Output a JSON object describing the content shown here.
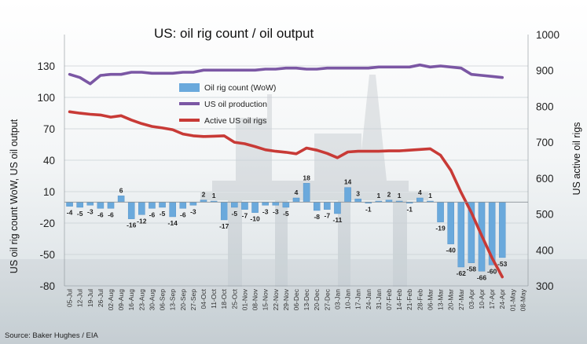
{
  "chart_data": {
    "type": "bar+line",
    "title": "US: oil rig count / oil output",
    "source": "Source: Baker Hughes / EIA",
    "ylabel_left": "US oil rig count WoW, US oil output",
    "ylabel_right": "US active oil rigs",
    "ylim_left": [
      -80,
      160
    ],
    "ylim_right": [
      300,
      1000
    ],
    "yticks_left": [
      "-80",
      "-50",
      "-20",
      "10",
      "40",
      "70",
      "100",
      "130"
    ],
    "yticks_right": [
      "300",
      "400",
      "500",
      "600",
      "700",
      "800",
      "900",
      "1000"
    ],
    "categories": [
      "05-Jul",
      "12-Jul",
      "19-Jul",
      "26-Jul",
      "02-Aug",
      "09-Aug",
      "16-Aug",
      "23-Aug",
      "30-Aug",
      "06-Sep",
      "13-Sep",
      "20-Sep",
      "27-Sep",
      "04-Oct",
      "11-Oct",
      "18-Oct",
      "25-Oct",
      "01-Nov",
      "08-Nov",
      "15-Nov",
      "22-Nov",
      "29-Nov",
      "06-Dec",
      "13-Dec",
      "20-Dec",
      "27-Dec",
      "03-Jan",
      "10-Jan",
      "17-Jan",
      "24-Jan",
      "31-Jan",
      "07-Feb",
      "14-Feb",
      "21-Feb",
      "28-Feb",
      "06-Mar",
      "13-Mar",
      "20-Mar",
      "27-Mar",
      "03-Apr",
      "10-Apr",
      "17-Apr",
      "24-Apr",
      "01-May",
      "08-May"
    ],
    "series": [
      {
        "name": "Oil rig count (WoW)",
        "type": "bar",
        "axis": "left",
        "color": "#6aa9dc",
        "values": [
          -4,
          -5,
          -3,
          -6,
          -6,
          6,
          -16,
          -12,
          -6,
          -5,
          -14,
          -6,
          -3,
          2,
          1,
          -17,
          -5,
          -7,
          -10,
          -3,
          -3,
          -5,
          4,
          18,
          -8,
          -7,
          -11,
          14,
          3,
          -1,
          1,
          2,
          1,
          -1,
          4,
          1,
          -19,
          -40,
          -62,
          -58,
          -66,
          -60,
          -53,
          null,
          null
        ],
        "labels": [
          "-4",
          "-5",
          "-3",
          "-6",
          "-6",
          "6",
          "-16",
          "-12",
          "-6",
          "-5",
          "-14",
          "-6",
          "-3",
          "2",
          "1",
          "-17",
          "-5",
          "-7",
          "-10",
          "-3",
          "-3",
          "-5",
          "4",
          "18",
          "-8",
          "-7",
          "-11",
          "14",
          "3",
          "-1",
          "1",
          "2",
          "1",
          "-1",
          "4",
          "1",
          "-19",
          "-40",
          "-62",
          "-58",
          "-66",
          "-60",
          "-53",
          "",
          ""
        ]
      },
      {
        "name": "US oil production",
        "type": "line",
        "axis": "left",
        "color": "#7b57a4",
        "values": [
          122,
          119,
          113,
          121,
          122,
          122,
          124,
          124,
          123,
          123,
          123,
          124,
          124,
          126,
          126,
          126,
          126,
          126,
          126,
          127,
          127,
          128,
          128,
          127,
          127,
          128,
          128,
          128,
          128,
          128,
          129,
          129,
          129,
          129,
          131,
          129,
          130,
          129,
          128,
          122,
          121,
          120,
          119,
          null,
          null
        ]
      },
      {
        "name": "Active US oil rigs",
        "type": "line",
        "axis": "right",
        "color": "#c83a36",
        "values": [
          785,
          781,
          778,
          776,
          770,
          774,
          762,
          752,
          744,
          740,
          735,
          723,
          718,
          716,
          717,
          718,
          700,
          696,
          688,
          679,
          675,
          672,
          668,
          684,
          678,
          669,
          657,
          673,
          675,
          675,
          675,
          676,
          676,
          678,
          680,
          682,
          664,
          622,
          560,
          504,
          440,
          378,
          325,
          null,
          null
        ]
      }
    ],
    "legend": "center-left"
  }
}
